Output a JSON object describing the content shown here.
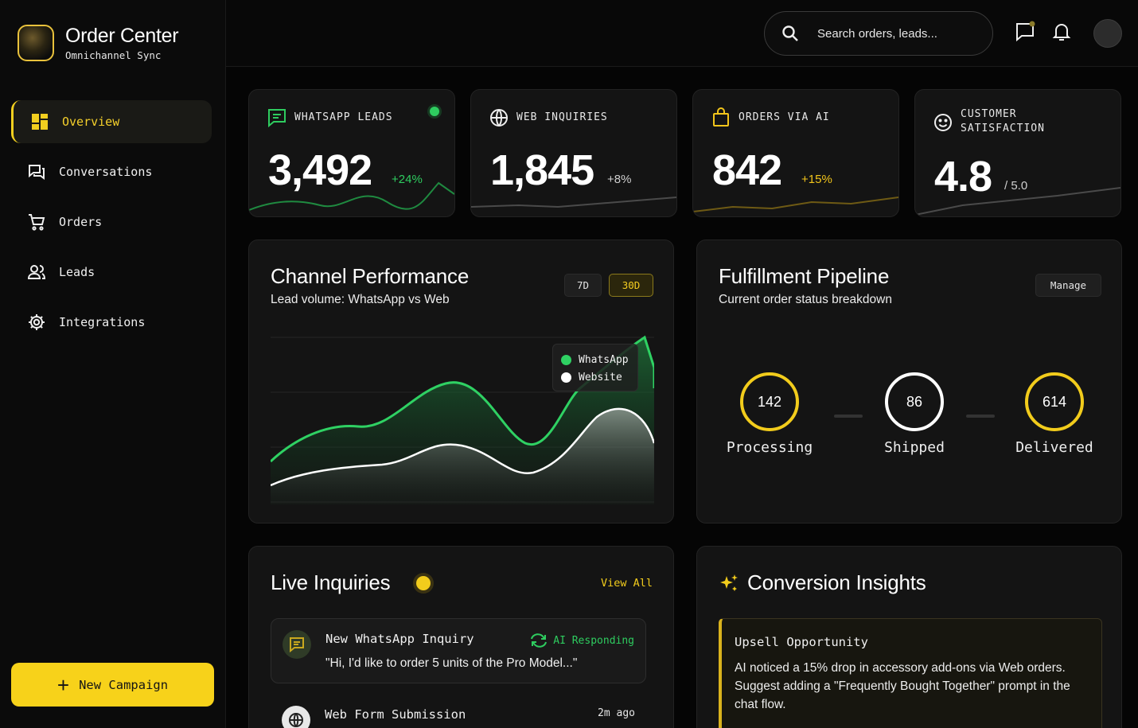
{
  "brand": {
    "title": "Order Center",
    "subtitle": "Omnichannel Sync"
  },
  "nav": [
    {
      "label": "Overview",
      "icon": "dashboard-grid-icon",
      "active": true
    },
    {
      "label": "Conversations",
      "icon": "chat-bubbles-icon",
      "active": false
    },
    {
      "label": "Orders",
      "icon": "cart-icon",
      "active": false
    },
    {
      "label": "Leads",
      "icon": "users-icon",
      "active": false
    },
    {
      "label": "Integrations",
      "icon": "gear-icon",
      "active": false
    }
  ],
  "new_campaign_label": "New Campaign",
  "search": {
    "placeholder": "Search orders, leads..."
  },
  "kpis": [
    {
      "label": "WHATSAPP LEADS",
      "value": "3,492",
      "delta": "+24%",
      "icon": "chat-icon",
      "accent": "#2ecc5f"
    },
    {
      "label": "WEB INQUIRIES",
      "value": "1,845",
      "delta": "+8%",
      "icon": "globe-icon",
      "accent": "#9a9a9a"
    },
    {
      "label": "ORDERS VIA AI",
      "value": "842",
      "delta": "+15%",
      "icon": "shopping-bag-icon",
      "accent": "#f2c51b"
    },
    {
      "label": "CUSTOMER SATISFACTION",
      "value": "4.8",
      "delta": "/ 5.0",
      "icon": "smiley-icon",
      "accent": "#b5b5b5"
    }
  ],
  "channel": {
    "title": "Channel Performance",
    "subtitle": "Lead volume: WhatsApp vs Web",
    "ranges": [
      "7D",
      "30D"
    ],
    "selected_range": "30D",
    "legend": [
      "WhatsApp",
      "Website"
    ]
  },
  "chart_data": {
    "type": "area",
    "series": [
      {
        "name": "WhatsApp",
        "color": "#2fd163"
      },
      {
        "name": "Website",
        "color": "#ffffff"
      }
    ],
    "grid": true,
    "legend_position": "top-right"
  },
  "pipeline": {
    "title": "Fulfillment Pipeline",
    "subtitle": "Current order status breakdown",
    "manage_label": "Manage",
    "stages": [
      {
        "label": "Processing",
        "count": "142",
        "color": "#f2cc1c"
      },
      {
        "label": "Shipped",
        "count": "86",
        "color": "#ffffff"
      },
      {
        "label": "Delivered",
        "count": "614",
        "color": "#f2cc1c"
      }
    ]
  },
  "inquiries": {
    "title": "Live Inquiries",
    "view_all": "View All",
    "items": [
      {
        "title": "New WhatsApp Inquiry",
        "status": "AI Responding",
        "text": "\"Hi, I'd like to order 5 units of the Pro Model...\""
      },
      {
        "title": "Web Form Submission",
        "time": "2m ago"
      }
    ]
  },
  "insights": {
    "title": "Conversion Insights",
    "card_title": "Upsell Opportunity",
    "card_text": "AI noticed a 15% drop in accessory add-ons via Web orders. Suggest adding a \"Frequently Bought Together\" prompt in the chat flow."
  }
}
